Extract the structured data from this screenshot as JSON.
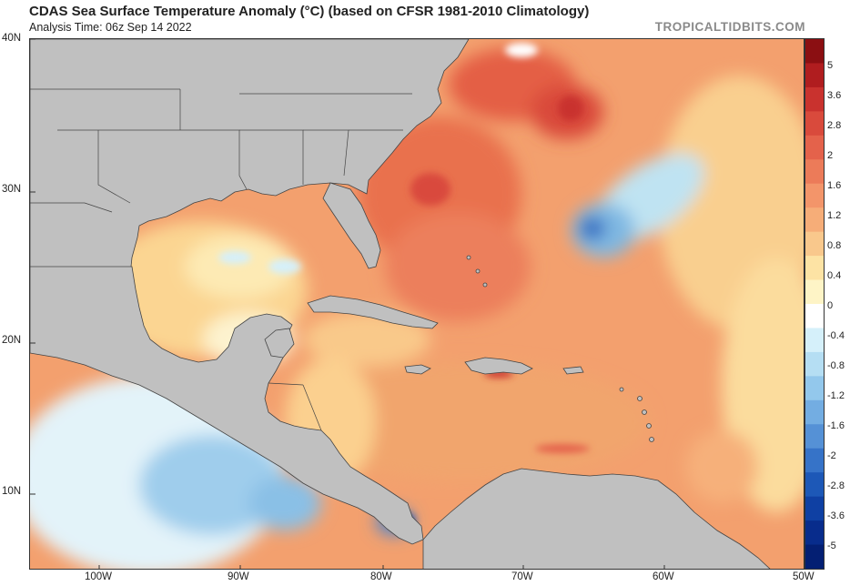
{
  "header": {
    "title": "CDAS Sea Surface Temperature Anomaly (°C) (based on CFSR 1981-2010 Climatology)",
    "analysis_time": "Analysis Time: 06z Sep 14 2022",
    "brand": "TROPICALTIDBITS.COM"
  },
  "map": {
    "lat_labels": [
      "40N",
      "30N",
      "20N",
      "10N"
    ],
    "lon_labels": [
      "100W",
      "90W",
      "80W",
      "70W",
      "60W",
      "50W"
    ],
    "land_color": "#c0c0c0",
    "border_color": "#333333"
  },
  "colorbar": {
    "unit": "°C",
    "tick_labels": [
      "5",
      "3.6",
      "2.8",
      "2",
      "1.6",
      "1.2",
      "0.8",
      "0.4",
      "0",
      "-0.4",
      "-0.8",
      "-1.2",
      "-1.6",
      "-2",
      "-2.8",
      "-3.6",
      "-5"
    ],
    "colors_top_to_bottom": [
      "#8b0f12",
      "#b01d1f",
      "#c9322e",
      "#d94a3c",
      "#e4624b",
      "#ec7b59",
      "#f3956a",
      "#f6ad78",
      "#f9c88c",
      "#fde3a4",
      "#fef4c6",
      "#ffffff",
      "#d5f0fa",
      "#b5def3",
      "#93c8ec",
      "#73ade2",
      "#5591d6",
      "#3673c8",
      "#1d58b7",
      "#0f40a3",
      "#082c8c",
      "#041f73"
    ]
  }
}
